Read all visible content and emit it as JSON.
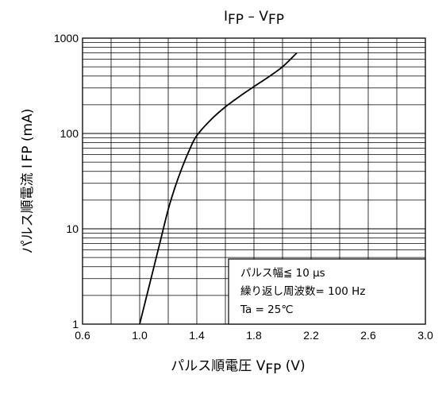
{
  "chart_data": {
    "type": "line",
    "title": "I FP – V FP",
    "title_parts": [
      {
        "text": "I",
        "sub": false
      },
      {
        "text": "FP",
        "sub": true
      },
      {
        "text": " – V",
        "sub": false
      },
      {
        "text": "FP",
        "sub": true
      }
    ],
    "xlabel": "パルス順電圧  V FP (V)",
    "xlabel_parts": [
      {
        "text": "パルス順電圧  V",
        "sub": false
      },
      {
        "text": "FP",
        "sub": true
      },
      {
        "text": " (V)",
        "sub": false
      }
    ],
    "ylabel": "パルス順電流  I FP (mA)",
    "xlim": [
      0.6,
      3.0
    ],
    "ylim": [
      1,
      1000
    ],
    "yscale": "log",
    "grid": true,
    "x_ticks": [
      0.6,
      1.0,
      1.4,
      1.8,
      2.2,
      2.6,
      3.0
    ],
    "x_tick_labels": [
      "0.6",
      "1.0",
      "1.4",
      "1.8",
      "2.2",
      "2.6",
      "3.0"
    ],
    "y_ticks": [
      1,
      10,
      100,
      1000
    ],
    "y_tick_labels": [
      "1",
      "10",
      "100",
      "1000"
    ],
    "series": [
      {
        "points": [
          [
            1.0,
            1
          ],
          [
            1.05,
            2
          ],
          [
            1.1,
            4
          ],
          [
            1.15,
            8
          ],
          [
            1.2,
            16
          ],
          [
            1.25,
            28
          ],
          [
            1.3,
            45
          ],
          [
            1.35,
            68
          ],
          [
            1.4,
            95
          ],
          [
            1.5,
            140
          ],
          [
            1.6,
            190
          ],
          [
            1.7,
            245
          ],
          [
            1.8,
            310
          ],
          [
            1.9,
            390
          ],
          [
            2.0,
            500
          ],
          [
            2.1,
            700
          ]
        ],
        "color": "#000000"
      }
    ],
    "annotation_lines": [
      "パルス幅≦ 10 μs",
      "繰り返し周波数= 100 Hz",
      "Ta = 25℃"
    ]
  }
}
